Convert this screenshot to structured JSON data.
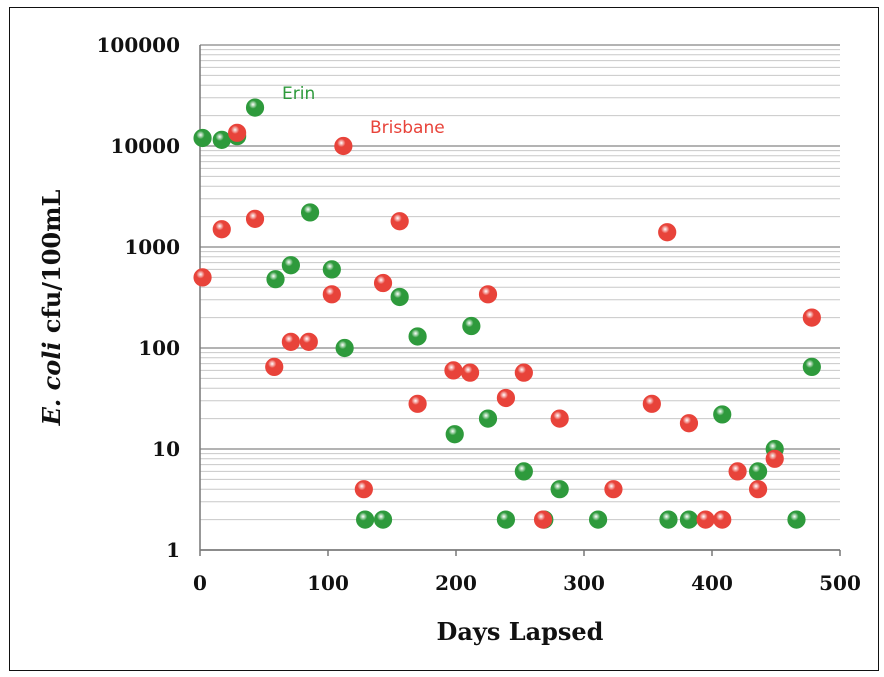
{
  "chart_data": {
    "type": "scatter",
    "xlabel": "Days Lapsed",
    "ylabel_italic": "E. coli",
    "ylabel_rest": " cfu/100mL",
    "x_ticks": [
      "0",
      "100",
      "200",
      "300",
      "400",
      "500"
    ],
    "y_ticks": [
      "1",
      "10",
      "100",
      "1000",
      "10000",
      "100000"
    ],
    "xlim": [
      0,
      500
    ],
    "ylim": [
      1,
      100000
    ],
    "y_scale": "log",
    "grid": "horizontal major and minor",
    "series": [
      {
        "name": "Erin",
        "color": "#2e9a3c",
        "points": [
          [
            2,
            12000
          ],
          [
            17,
            11500
          ],
          [
            29,
            12500
          ],
          [
            43,
            24000
          ],
          [
            59,
            480
          ],
          [
            71,
            660
          ],
          [
            86,
            2200
          ],
          [
            103,
            600
          ],
          [
            113,
            100
          ],
          [
            129,
            2
          ],
          [
            143,
            2
          ],
          [
            156,
            320
          ],
          [
            170,
            130
          ],
          [
            199,
            14
          ],
          [
            212,
            165
          ],
          [
            225,
            20
          ],
          [
            253,
            6
          ],
          [
            239,
            2
          ],
          [
            269,
            2
          ],
          [
            281,
            4
          ],
          [
            311,
            2
          ],
          [
            366,
            2
          ],
          [
            382,
            2
          ],
          [
            408,
            22
          ],
          [
            436,
            6
          ],
          [
            449,
            10
          ],
          [
            466,
            2
          ],
          [
            478,
            65
          ]
        ]
      },
      {
        "name": "Brisbane",
        "color": "#e8433a",
        "points": [
          [
            2,
            500
          ],
          [
            17,
            1500
          ],
          [
            29,
            13500
          ],
          [
            43,
            1900
          ],
          [
            58,
            65
          ],
          [
            71,
            115
          ],
          [
            85,
            115
          ],
          [
            103,
            340
          ],
          [
            112,
            10000
          ],
          [
            128,
            4
          ],
          [
            143,
            440
          ],
          [
            156,
            1800
          ],
          [
            170,
            28
          ],
          [
            198,
            60
          ],
          [
            211,
            57
          ],
          [
            225,
            340
          ],
          [
            239,
            32
          ],
          [
            253,
            57
          ],
          [
            268,
            2
          ],
          [
            281,
            20
          ],
          [
            323,
            4
          ],
          [
            353,
            28
          ],
          [
            365,
            1400
          ],
          [
            382,
            18
          ],
          [
            395,
            2
          ],
          [
            408,
            2
          ],
          [
            420,
            6
          ],
          [
            436,
            4
          ],
          [
            449,
            8
          ],
          [
            478,
            200
          ]
        ]
      }
    ]
  }
}
